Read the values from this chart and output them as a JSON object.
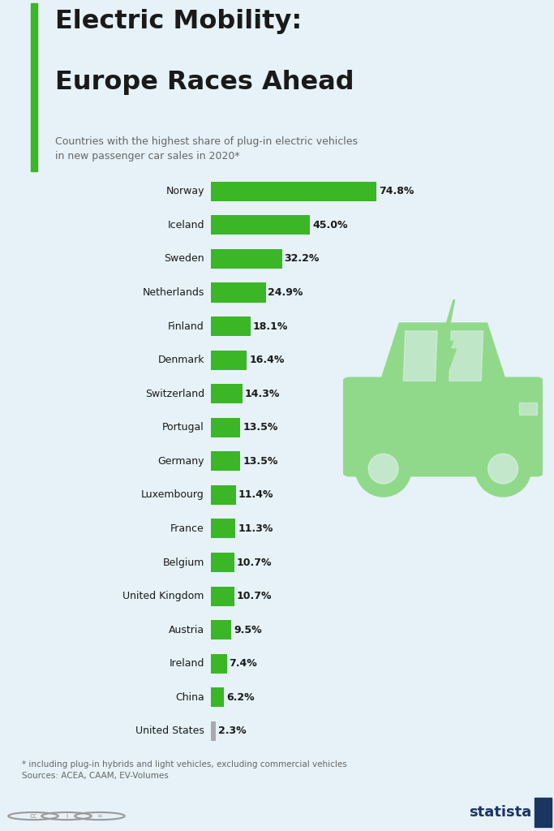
{
  "title_line1": "Electric Mobility:",
  "title_line2": "Europe Races Ahead",
  "subtitle": "Countries with the highest share of plug-in electric vehicles\nin new passenger car sales in 2020*",
  "footnote": "* including plug-in hybrids and light vehicles, excluding commercial vehicles\nSources: ACEA, CAAM, EV-Volumes",
  "countries": [
    "Norway",
    "Iceland",
    "Sweden",
    "Netherlands",
    "Finland",
    "Denmark",
    "Switzerland",
    "Portugal",
    "Germany",
    "Luxembourg",
    "France",
    "Belgium",
    "United Kingdom",
    "Austria",
    "Ireland",
    "China",
    "United States"
  ],
  "values": [
    74.8,
    45.0,
    32.2,
    24.9,
    18.1,
    16.4,
    14.3,
    13.5,
    13.5,
    11.4,
    11.3,
    10.7,
    10.7,
    9.5,
    7.4,
    6.2,
    2.3
  ],
  "bar_colors": [
    "#3ab626",
    "#3ab626",
    "#3ab626",
    "#3ab626",
    "#3ab626",
    "#3ab626",
    "#3ab626",
    "#3ab626",
    "#3ab626",
    "#3ab626",
    "#3ab626",
    "#3ab626",
    "#3ab626",
    "#3ab626",
    "#3ab626",
    "#3ab626",
    "#aaaaaa"
  ],
  "bg_color": "#e6f2f8",
  "title_color": "#1a1a1a",
  "subtitle_color": "#666666",
  "bar_label_color": "#1a1a1a",
  "accent_color": "#3ab626",
  "car_color": "#90d98a",
  "footnote_color": "#666666",
  "statista_color": "#1a3560"
}
